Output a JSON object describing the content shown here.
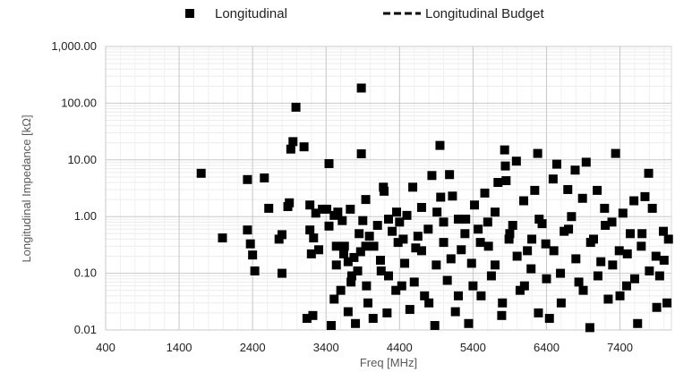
{
  "chart_data": {
    "type": "scatter",
    "xlabel": "Freq [MHz]",
    "ylabel": "Longitudinal Impedance [kΩ]",
    "xlim": [
      400,
      8100
    ],
    "ylim": [
      0.01,
      1000
    ],
    "y_scale": "log",
    "x_ticks": [
      "400",
      "1400",
      "2400",
      "3400",
      "4400",
      "5400",
      "6400",
      "7400"
    ],
    "x_tick_values": [
      400,
      1400,
      2400,
      3400,
      4400,
      5400,
      6400,
      7400
    ],
    "y_ticks": [
      "0.01",
      "0.10",
      "1.00",
      "10.00",
      "100.00",
      "1,000.00"
    ],
    "y_tick_values": [
      0.01,
      0.1,
      1,
      10,
      100,
      1000
    ],
    "grid": true,
    "legend_position": "top",
    "series": [
      {
        "name": "Longitudinal",
        "marker": "square",
        "color": "#000000",
        "points": [
          [
            1700,
            5.8
          ],
          [
            1990,
            0.42
          ],
          [
            2330,
            4.5
          ],
          [
            2330,
            0.58
          ],
          [
            2370,
            0.33
          ],
          [
            2400,
            0.21
          ],
          [
            2430,
            0.11
          ],
          [
            2560,
            4.8
          ],
          [
            2620,
            1.4
          ],
          [
            2760,
            0.4
          ],
          [
            2800,
            0.48
          ],
          [
            2800,
            0.1
          ],
          [
            2880,
            1.5
          ],
          [
            2900,
            1.75
          ],
          [
            2920,
            15.5
          ],
          [
            2950,
            21
          ],
          [
            2990,
            85
          ],
          [
            3100,
            17
          ],
          [
            3140,
            0.016
          ],
          [
            3180,
            1.6
          ],
          [
            3180,
            0.58
          ],
          [
            3200,
            0.22
          ],
          [
            3220,
            0.018
          ],
          [
            3230,
            0.42
          ],
          [
            3260,
            1.15
          ],
          [
            3300,
            0.26
          ],
          [
            3350,
            1.35
          ],
          [
            3410,
            1.35
          ],
          [
            3440,
            8.6
          ],
          [
            3440,
            0.68
          ],
          [
            3470,
            0.012
          ],
          [
            3510,
            1.05
          ],
          [
            3510,
            0.035
          ],
          [
            3540,
            0.14
          ],
          [
            3540,
            0.3
          ],
          [
            3560,
            1.2
          ],
          [
            3600,
            0.05
          ],
          [
            3620,
            0.85
          ],
          [
            3640,
            0.22
          ],
          [
            3700,
            0.021
          ],
          [
            3700,
            0.16
          ],
          [
            3730,
            1.35
          ],
          [
            3740,
            0.07
          ],
          [
            3780,
            0.19
          ],
          [
            3800,
            0.013
          ],
          [
            3830,
            0.11
          ],
          [
            3860,
            0.009
          ],
          [
            3870,
            0.24
          ],
          [
            3880,
            12.8
          ],
          [
            3880,
            185
          ],
          [
            3900,
            0.85
          ],
          [
            3940,
            2.0
          ],
          [
            3940,
            0.3
          ],
          [
            3970,
            0.03
          ],
          [
            3990,
            0.45
          ],
          [
            4040,
            0.016
          ],
          [
            4100,
            0.7
          ],
          [
            4140,
            0.17
          ],
          [
            4180,
            3.3
          ],
          [
            4190,
            2.8
          ],
          [
            4230,
            0.02
          ],
          [
            4250,
            0.09
          ],
          [
            4300,
            0.55
          ],
          [
            4360,
            1.2
          ],
          [
            4380,
            0.35
          ],
          [
            4400,
            0.8
          ],
          [
            4430,
            0.06
          ],
          [
            4470,
            0.15
          ],
          [
            4500,
            1.05
          ],
          [
            4540,
            0.023
          ],
          [
            4580,
            3.3
          ],
          [
            4620,
            0.28
          ],
          [
            4650,
            0.45
          ],
          [
            4700,
            1.45
          ],
          [
            4740,
            0.04
          ],
          [
            4790,
            0.6
          ],
          [
            4840,
            5.3
          ],
          [
            4880,
            0.012
          ],
          [
            4910,
            1.2
          ],
          [
            4950,
            18
          ],
          [
            4960,
            2.2
          ],
          [
            5000,
            0.35
          ],
          [
            5050,
            0.075
          ],
          [
            5080,
            5.5
          ],
          [
            5120,
            2.3
          ],
          [
            5160,
            0.021
          ],
          [
            5200,
            0.9
          ],
          [
            5240,
            0.26
          ],
          [
            5290,
            0.5
          ],
          [
            5340,
            0.013
          ],
          [
            5380,
            0.15
          ],
          [
            5420,
            1.6
          ],
          [
            5470,
            0.6
          ],
          [
            5510,
            0.04
          ],
          [
            5560,
            2.6
          ],
          [
            5610,
            0.3
          ],
          [
            5650,
            0.09
          ],
          [
            5700,
            1.2
          ],
          [
            5740,
            4.0
          ],
          [
            5790,
            0.018
          ],
          [
            5830,
            15
          ],
          [
            5840,
            7.8
          ],
          [
            5850,
            4.3
          ],
          [
            5890,
            0.4
          ],
          [
            5940,
            0.7
          ],
          [
            5990,
            9.5
          ],
          [
            6040,
            0.05
          ],
          [
            6090,
            1.9
          ],
          [
            6140,
            0.25
          ],
          [
            6190,
            0.12
          ],
          [
            6240,
            2.9
          ],
          [
            6280,
            13
          ],
          [
            6290,
            0.02
          ],
          [
            6340,
            0.75
          ],
          [
            6390,
            0.33
          ],
          [
            6440,
            0.016
          ],
          [
            6490,
            4.6
          ],
          [
            6540,
            8.4
          ],
          [
            6590,
            0.1
          ],
          [
            6640,
            0.55
          ],
          [
            6690,
            3.0
          ],
          [
            6740,
            1.0
          ],
          [
            6790,
            6.6
          ],
          [
            6840,
            0.07
          ],
          [
            6890,
            2.1
          ],
          [
            6940,
            9.1
          ],
          [
            6990,
            0.011
          ],
          [
            7040,
            0.4
          ],
          [
            7090,
            2.9
          ],
          [
            7140,
            0.16
          ],
          [
            7190,
            1.4
          ],
          [
            7240,
            0.035
          ],
          [
            7290,
            0.8
          ],
          [
            7340,
            13
          ],
          [
            7390,
            0.25
          ],
          [
            7440,
            1.15
          ],
          [
            7490,
            0.06
          ],
          [
            7540,
            0.5
          ],
          [
            7590,
            1.9
          ],
          [
            7640,
            0.013
          ],
          [
            7690,
            0.3
          ],
          [
            7740,
            2.25
          ],
          [
            7790,
            5.8
          ],
          [
            7840,
            1.4
          ],
          [
            7890,
            0.2
          ],
          [
            7940,
            0.09
          ],
          [
            7990,
            0.55
          ],
          [
            8040,
            0.03
          ],
          [
            8060,
            0.4
          ],
          [
            5000,
            0.8
          ],
          [
            5100,
            0.18
          ],
          [
            5200,
            0.04
          ],
          [
            5300,
            0.9
          ],
          [
            5400,
            0.06
          ],
          [
            5500,
            0.35
          ],
          [
            5600,
            0.8
          ],
          [
            5700,
            0.14
          ],
          [
            5800,
            0.03
          ],
          [
            5900,
            0.5
          ],
          [
            6000,
            0.2
          ],
          [
            6100,
            0.06
          ],
          [
            6200,
            0.4
          ],
          [
            6300,
            0.9
          ],
          [
            6400,
            0.08
          ],
          [
            6500,
            0.25
          ],
          [
            6600,
            0.03
          ],
          [
            6700,
            0.6
          ],
          [
            6800,
            0.18
          ],
          [
            6900,
            0.05
          ],
          [
            7000,
            0.35
          ],
          [
            7100,
            0.09
          ],
          [
            7200,
            0.7
          ],
          [
            7300,
            0.14
          ],
          [
            7400,
            0.04
          ],
          [
            7500,
            0.22
          ],
          [
            7600,
            0.08
          ],
          [
            7700,
            0.5
          ],
          [
            7800,
            0.11
          ],
          [
            7900,
            0.025
          ],
          [
            8000,
            0.17
          ],
          [
            4600,
            0.07
          ],
          [
            4700,
            0.25
          ],
          [
            4800,
            0.03
          ],
          [
            4900,
            0.14
          ],
          [
            4450,
            0.4
          ],
          [
            4350,
            0.05
          ],
          [
            4250,
            0.9
          ],
          [
            4150,
            0.11
          ],
          [
            4050,
            0.3
          ],
          [
            3950,
            0.06
          ],
          [
            3850,
            0.5
          ],
          [
            3750,
            0.09
          ],
          [
            3650,
            0.3
          ]
        ]
      },
      {
        "name": "Longitudinal Budget",
        "style": "dashed-line",
        "color": "#000000",
        "points": []
      }
    ]
  }
}
